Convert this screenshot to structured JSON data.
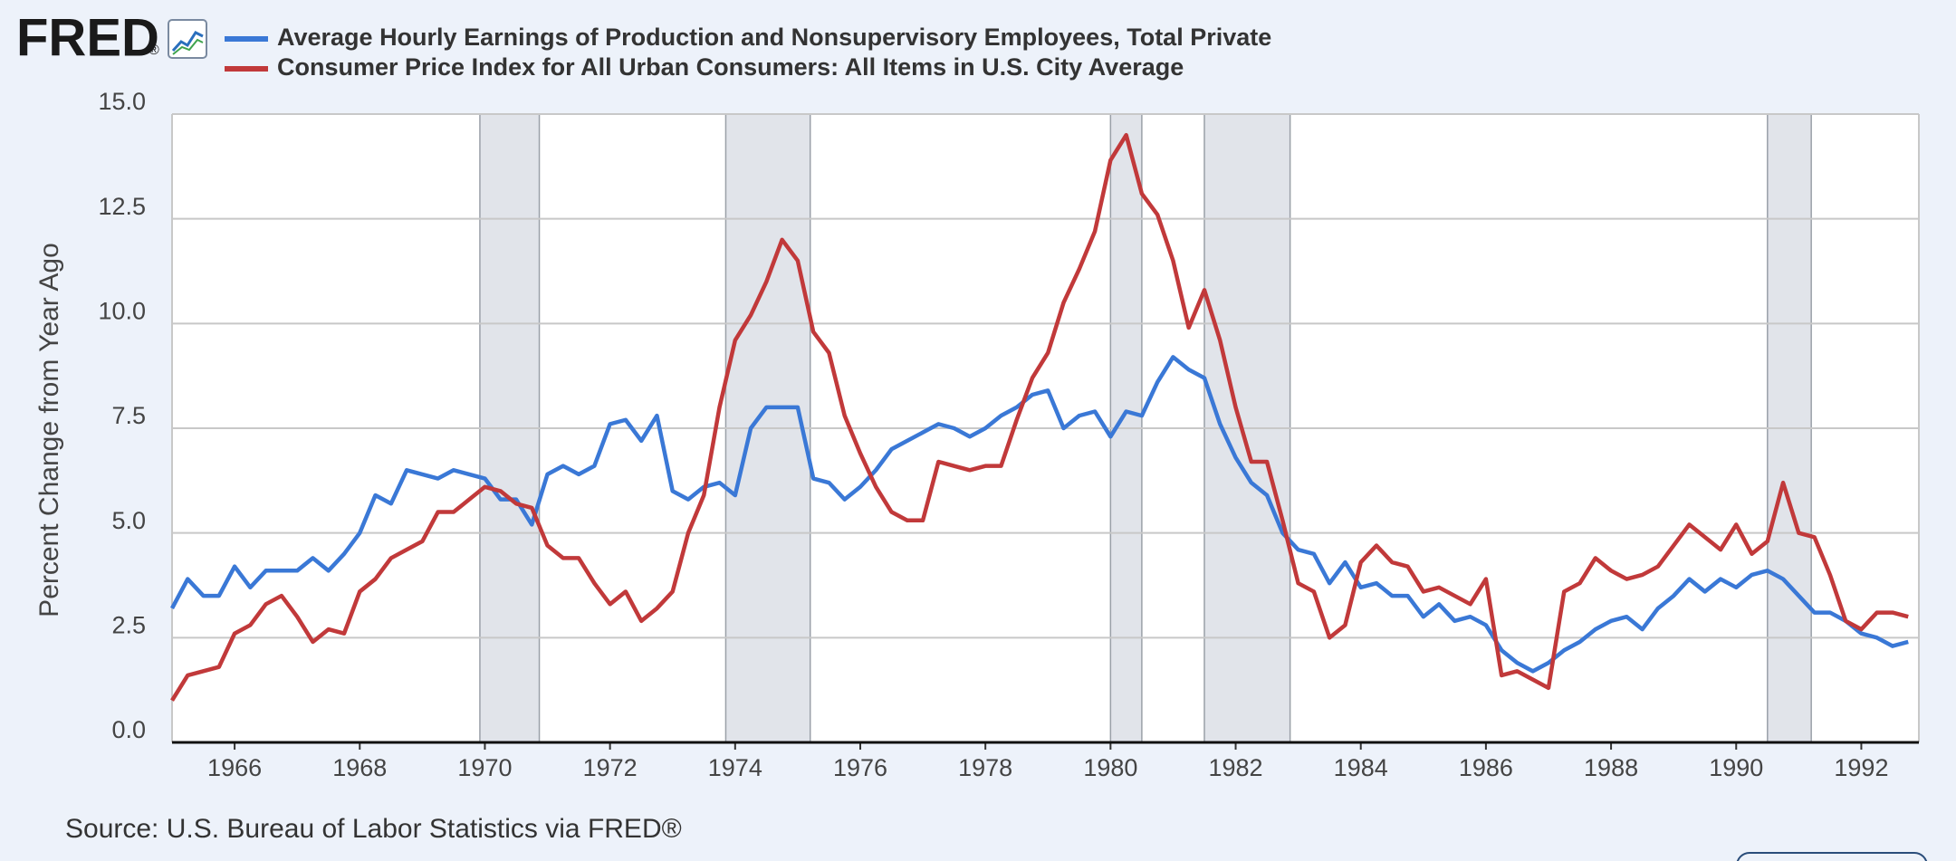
{
  "chart_data": {
    "type": "line",
    "logo": "FRED",
    "logo_mark": "®",
    "ylabel": "Percent Change from Year Ago",
    "source": "Source: U.S. Bureau of Labor Statistics via FRED®",
    "xlim": [
      1965,
      1992.92
    ],
    "xticks": [
      1966,
      1968,
      1970,
      1972,
      1974,
      1976,
      1978,
      1980,
      1982,
      1984,
      1986,
      1988,
      1990,
      1992
    ],
    "ylim": [
      0,
      15
    ],
    "yticks": [
      {
        "value": 0,
        "label": "0.0"
      },
      2.5,
      {
        "value": 5,
        "label": "5.0"
      },
      7.5,
      {
        "value": 10,
        "label": "10.0"
      },
      12.5,
      {
        "value": 15,
        "label": "15.0"
      }
    ],
    "grid": true,
    "recessions": [
      [
        1969.92,
        1970.87
      ],
      [
        1973.85,
        1975.2
      ],
      [
        1980.0,
        1980.5
      ],
      [
        1981.5,
        1982.87
      ],
      [
        1990.5,
        1991.2
      ]
    ],
    "x": [
      1965,
      1965.25,
      1965.5,
      1965.75,
      1966,
      1966.25,
      1966.5,
      1966.75,
      1967,
      1967.25,
      1967.5,
      1967.75,
      1968,
      1968.25,
      1968.5,
      1968.75,
      1969,
      1969.25,
      1969.5,
      1969.75,
      1970,
      1970.25,
      1970.5,
      1970.75,
      1971,
      1971.25,
      1971.5,
      1971.75,
      1972,
      1972.25,
      1972.5,
      1972.75,
      1973,
      1973.25,
      1973.5,
      1973.75,
      1974,
      1974.25,
      1974.5,
      1974.75,
      1975,
      1975.25,
      1975.5,
      1975.75,
      1976,
      1976.25,
      1976.5,
      1976.75,
      1977,
      1977.25,
      1977.5,
      1977.75,
      1978,
      1978.25,
      1978.5,
      1978.75,
      1979,
      1979.25,
      1979.5,
      1979.75,
      1980,
      1980.25,
      1980.5,
      1980.75,
      1981,
      1981.25,
      1981.5,
      1981.75,
      1982,
      1982.25,
      1982.5,
      1982.75,
      1983,
      1983.25,
      1983.5,
      1983.75,
      1984,
      1984.25,
      1984.5,
      1984.75,
      1985,
      1985.25,
      1985.5,
      1985.75,
      1986,
      1986.25,
      1986.5,
      1986.75,
      1987,
      1987.25,
      1987.5,
      1987.75,
      1988,
      1988.25,
      1988.5,
      1988.75,
      1989,
      1989.25,
      1989.5,
      1989.75,
      1990,
      1990.25,
      1990.5,
      1990.75,
      1991,
      1991.25,
      1991.5,
      1991.75,
      1992,
      1992.25,
      1992.5,
      1992.75
    ],
    "series": [
      {
        "name": "Average Hourly Earnings of Production and Nonsupervisory Employees, Total Private",
        "color": "#3a78d6",
        "values": [
          3.2,
          3.9,
          3.5,
          3.5,
          4.2,
          3.7,
          4.1,
          4.1,
          4.1,
          4.4,
          4.1,
          4.5,
          5.0,
          5.9,
          5.7,
          6.5,
          6.4,
          6.3,
          6.5,
          6.4,
          6.3,
          5.8,
          5.8,
          5.2,
          6.4,
          6.6,
          6.4,
          6.6,
          7.6,
          7.7,
          7.2,
          7.8,
          6.0,
          5.8,
          6.1,
          6.2,
          5.9,
          7.5,
          8.0,
          8.0,
          8.0,
          6.3,
          6.2,
          5.8,
          6.1,
          6.5,
          7.0,
          7.2,
          7.4,
          7.6,
          7.5,
          7.3,
          7.5,
          7.8,
          8.0,
          8.3,
          8.4,
          7.5,
          7.8,
          7.9,
          7.3,
          7.9,
          7.8,
          8.6,
          9.2,
          8.9,
          8.7,
          7.6,
          6.8,
          6.2,
          5.9,
          5.0,
          4.6,
          4.5,
          3.8,
          4.3,
          3.7,
          3.8,
          3.5,
          3.5,
          3.0,
          3.3,
          2.9,
          3.0,
          2.8,
          2.2,
          1.9,
          1.7,
          1.9,
          2.2,
          2.4,
          2.7,
          2.9,
          3.0,
          2.7,
          3.2,
          3.5,
          3.9,
          3.6,
          3.9,
          3.7,
          4.0,
          4.1,
          3.9,
          3.5,
          3.1,
          3.1,
          2.9,
          2.6,
          2.5,
          2.3,
          2.4
        ]
      },
      {
        "name": "Consumer Price Index for All Urban Consumers: All Items in U.S. City Average",
        "color": "#c1393a",
        "values": [
          1.0,
          1.6,
          1.7,
          1.8,
          2.6,
          2.8,
          3.3,
          3.5,
          3.0,
          2.4,
          2.7,
          2.6,
          3.6,
          3.9,
          4.4,
          4.6,
          4.8,
          5.5,
          5.5,
          5.8,
          6.1,
          6.0,
          5.7,
          5.6,
          4.7,
          4.4,
          4.4,
          3.8,
          3.3,
          3.6,
          2.9,
          3.2,
          3.6,
          5.0,
          5.9,
          8.0,
          9.6,
          10.2,
          11.0,
          12.0,
          11.5,
          9.8,
          9.3,
          7.8,
          6.9,
          6.1,
          5.5,
          5.3,
          5.3,
          6.7,
          6.6,
          6.5,
          6.6,
          6.6,
          7.7,
          8.7,
          9.3,
          10.5,
          11.3,
          12.2,
          13.9,
          14.5,
          13.1,
          12.6,
          11.5,
          9.9,
          10.8,
          9.6,
          8.0,
          6.7,
          6.7,
          5.3,
          3.8,
          3.6,
          2.5,
          2.8,
          4.3,
          4.7,
          4.3,
          4.2,
          3.6,
          3.7,
          3.5,
          3.3,
          3.9,
          1.6,
          1.7,
          1.5,
          1.3,
          3.6,
          3.8,
          4.4,
          4.1,
          3.9,
          4.0,
          4.2,
          4.7,
          5.2,
          4.9,
          4.6,
          5.2,
          4.5,
          4.8,
          6.2,
          5.0,
          4.9,
          4.0,
          2.9,
          2.7,
          3.1,
          3.1,
          3.0
        ]
      }
    ]
  }
}
